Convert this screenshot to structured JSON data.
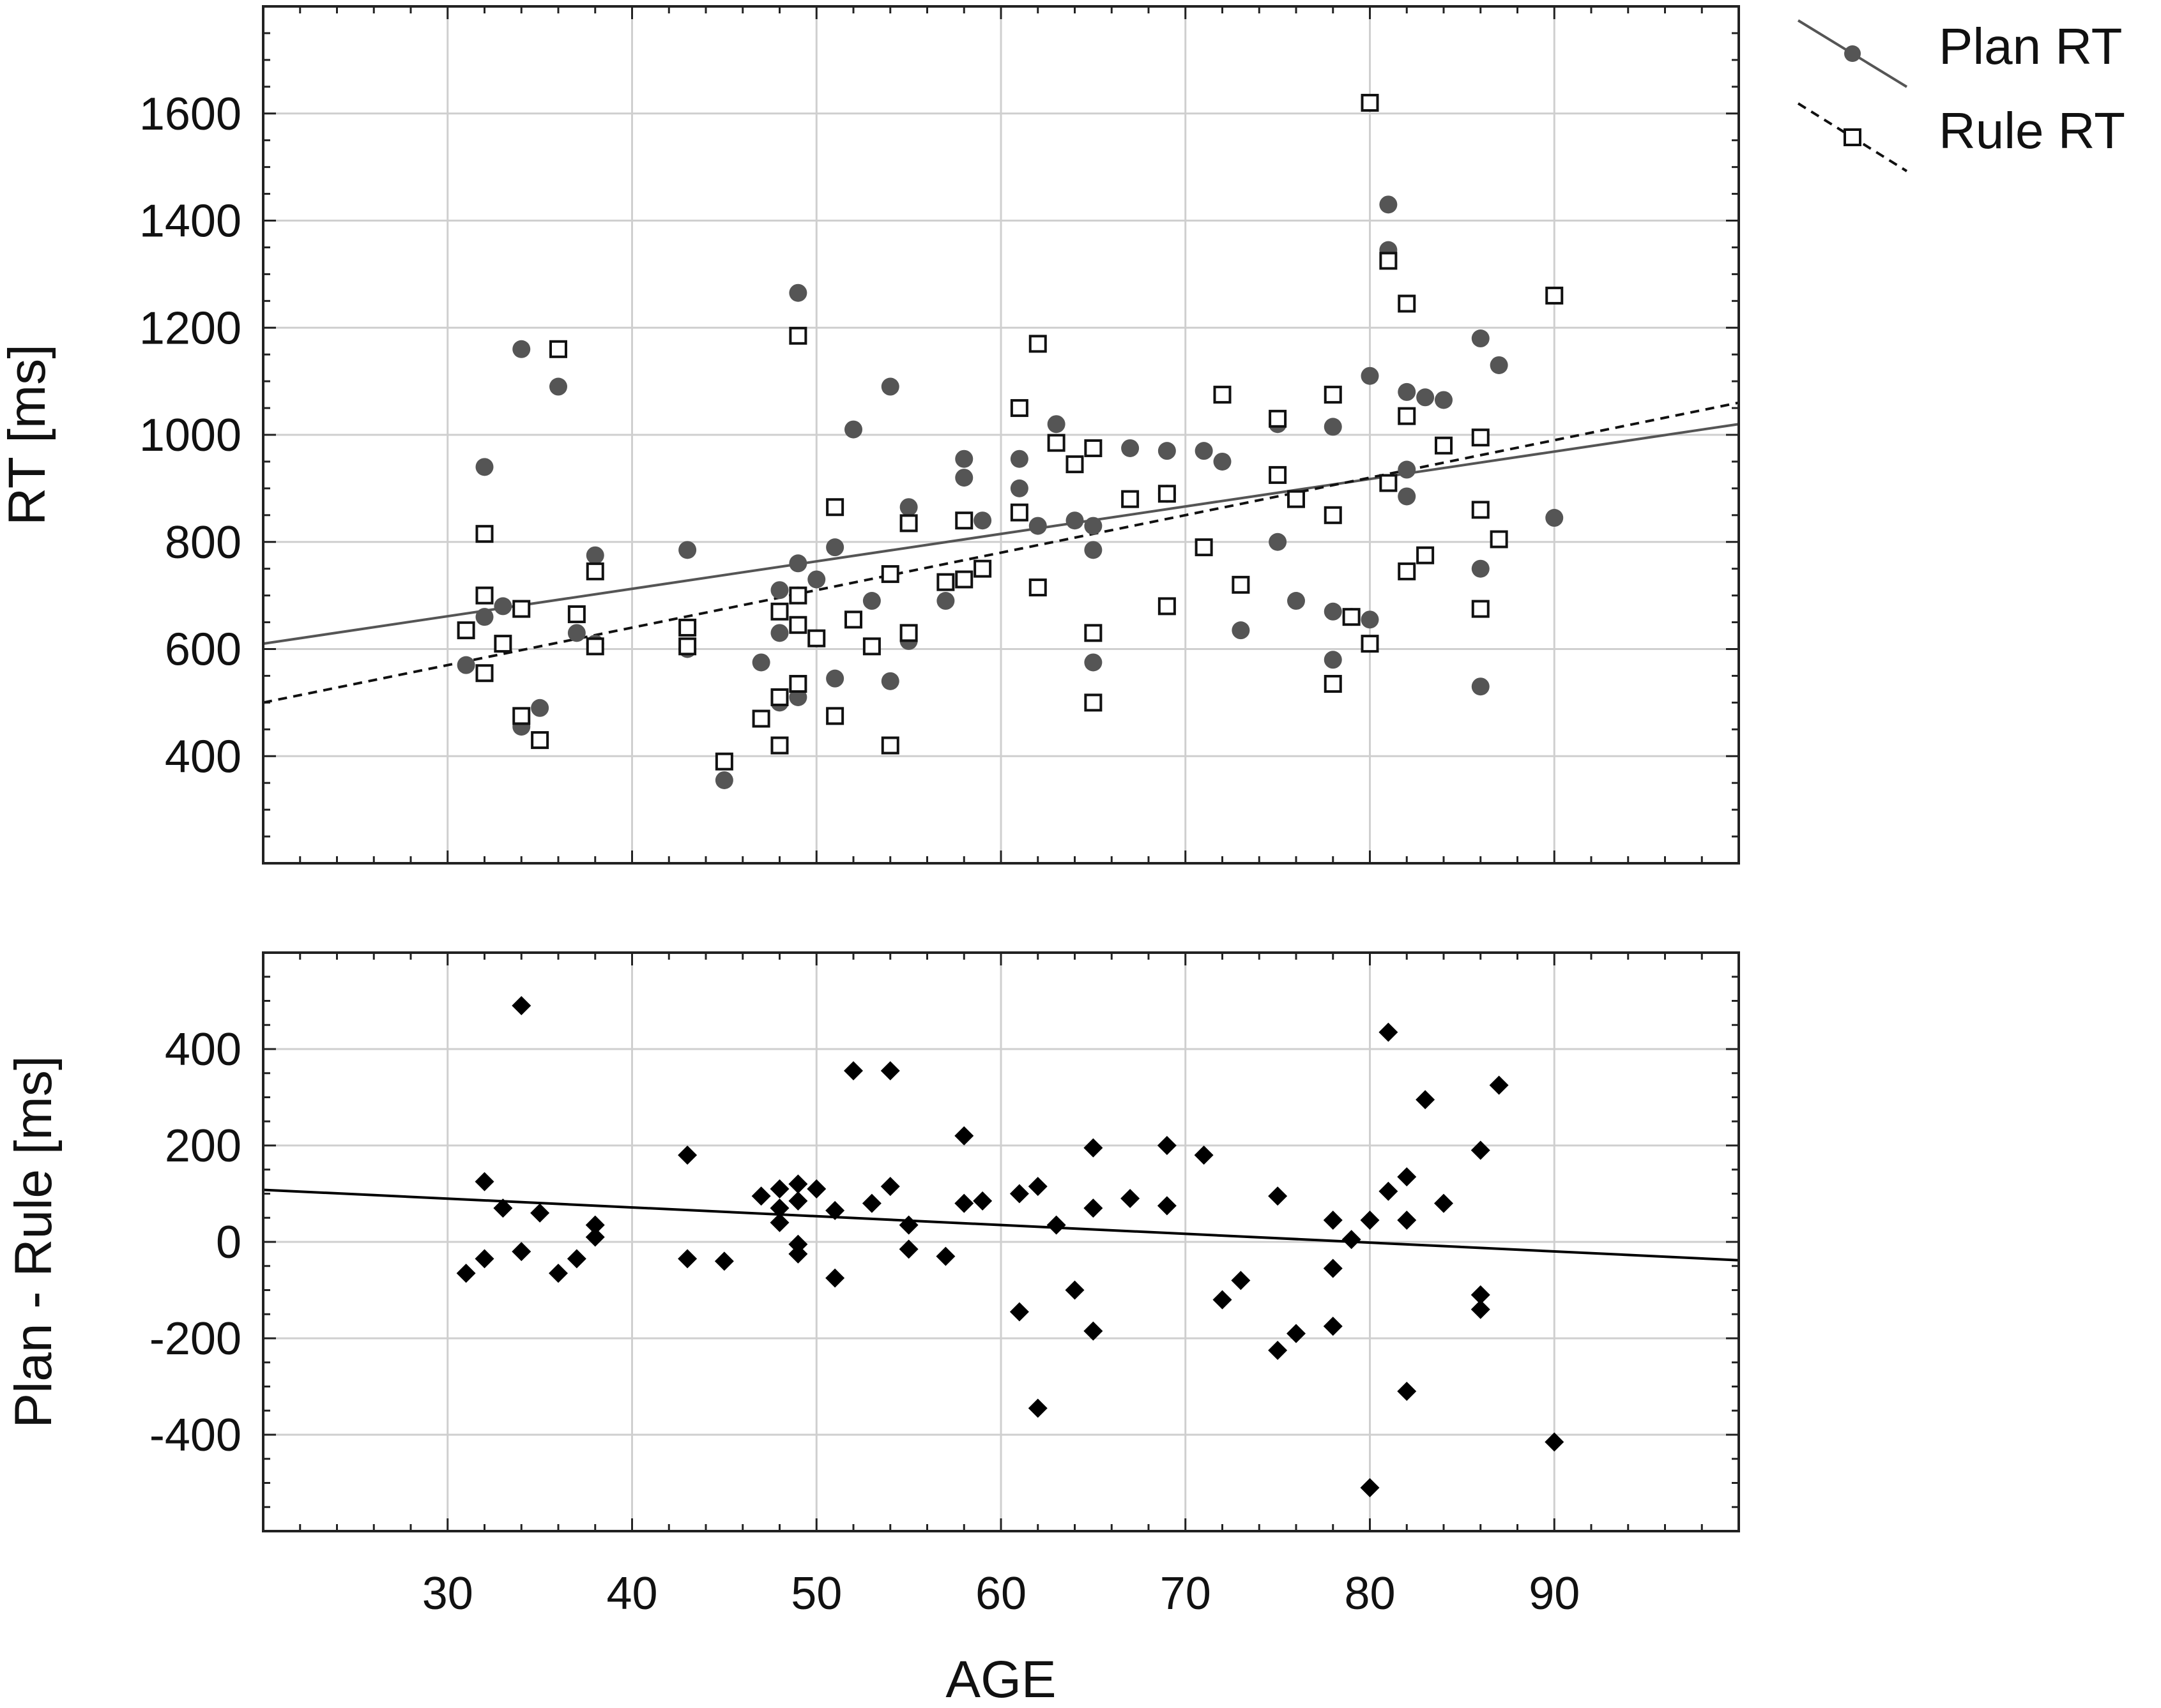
{
  "chart_data": [
    {
      "type": "scatter",
      "title": "",
      "xlabel": "",
      "ylabel": "RT [ms]",
      "xlim": [
        20,
        100
      ],
      "ylim": [
        200,
        1800
      ],
      "xticks": [
        30,
        40,
        50,
        60,
        70,
        80,
        90
      ],
      "yticks": [
        400,
        600,
        800,
        1000,
        1200,
        1400,
        1600
      ],
      "grid": true,
      "legend_position": "top-right",
      "series": [
        {
          "name": "Plan RT",
          "marker": "filled-circle",
          "color": "#555555",
          "points": [
            [
              31,
              570
            ],
            [
              32,
              940
            ],
            [
              32,
              660
            ],
            [
              33,
              680
            ],
            [
              34,
              1160
            ],
            [
              34,
              455
            ],
            [
              35,
              490
            ],
            [
              36,
              1090
            ],
            [
              37,
              630
            ],
            [
              38,
              775
            ],
            [
              38,
              610
            ],
            [
              43,
              785
            ],
            [
              43,
              600
            ],
            [
              45,
              355
            ],
            [
              47,
              575
            ],
            [
              48,
              710
            ],
            [
              48,
              630
            ],
            [
              48,
              500
            ],
            [
              49,
              1265
            ],
            [
              49,
              760
            ],
            [
              49,
              700
            ],
            [
              49,
              510
            ],
            [
              50,
              730
            ],
            [
              51,
              790
            ],
            [
              51,
              545
            ],
            [
              52,
              1010
            ],
            [
              53,
              690
            ],
            [
              54,
              1090
            ],
            [
              54,
              540
            ],
            [
              55,
              865
            ],
            [
              55,
              615
            ],
            [
              57,
              690
            ],
            [
              58,
              955
            ],
            [
              58,
              920
            ],
            [
              59,
              840
            ],
            [
              61,
              955
            ],
            [
              61,
              900
            ],
            [
              62,
              830
            ],
            [
              63,
              1020
            ],
            [
              64,
              840
            ],
            [
              65,
              830
            ],
            [
              65,
              785
            ],
            [
              65,
              575
            ],
            [
              67,
              975
            ],
            [
              69,
              970
            ],
            [
              69,
              890
            ],
            [
              71,
              970
            ],
            [
              72,
              950
            ],
            [
              73,
              635
            ],
            [
              75,
              1020
            ],
            [
              75,
              800
            ],
            [
              76,
              690
            ],
            [
              78,
              1015
            ],
            [
              78,
              670
            ],
            [
              78,
              580
            ],
            [
              79,
              660
            ],
            [
              80,
              1110
            ],
            [
              80,
              655
            ],
            [
              81,
              1430
            ],
            [
              81,
              1345
            ],
            [
              82,
              1080
            ],
            [
              82,
              935
            ],
            [
              82,
              885
            ],
            [
              83,
              1070
            ],
            [
              84,
              1065
            ],
            [
              86,
              1180
            ],
            [
              86,
              750
            ],
            [
              86,
              530
            ],
            [
              87,
              1130
            ],
            [
              90,
              845
            ]
          ],
          "trend": {
            "x": [
              20,
              100
            ],
            "y": [
              610,
              1020
            ]
          }
        },
        {
          "name": "Rule RT",
          "marker": "open-square",
          "color": "#111111",
          "points": [
            [
              31,
              635
            ],
            [
              32,
              815
            ],
            [
              32,
              700
            ],
            [
              32,
              555
            ],
            [
              33,
              610
            ],
            [
              34,
              675
            ],
            [
              34,
              475
            ],
            [
              35,
              430
            ],
            [
              36,
              1160
            ],
            [
              37,
              665
            ],
            [
              38,
              745
            ],
            [
              38,
              605
            ],
            [
              43,
              640
            ],
            [
              43,
              605
            ],
            [
              45,
              390
            ],
            [
              47,
              470
            ],
            [
              48,
              670
            ],
            [
              48,
              510
            ],
            [
              48,
              420
            ],
            [
              49,
              1185
            ],
            [
              49,
              700
            ],
            [
              49,
              645
            ],
            [
              49,
              535
            ],
            [
              50,
              620
            ],
            [
              51,
              865
            ],
            [
              51,
              475
            ],
            [
              52,
              655
            ],
            [
              53,
              605
            ],
            [
              54,
              740
            ],
            [
              54,
              420
            ],
            [
              55,
              835
            ],
            [
              55,
              630
            ],
            [
              57,
              725
            ],
            [
              58,
              840
            ],
            [
              58,
              730
            ],
            [
              59,
              750
            ],
            [
              61,
              1050
            ],
            [
              61,
              855
            ],
            [
              62,
              1170
            ],
            [
              62,
              715
            ],
            [
              63,
              985
            ],
            [
              64,
              945
            ],
            [
              65,
              975
            ],
            [
              65,
              630
            ],
            [
              65,
              500
            ],
            [
              67,
              880
            ],
            [
              69,
              890
            ],
            [
              69,
              680
            ],
            [
              71,
              790
            ],
            [
              72,
              1075
            ],
            [
              73,
              720
            ],
            [
              75,
              1030
            ],
            [
              75,
              925
            ],
            [
              76,
              880
            ],
            [
              78,
              1075
            ],
            [
              78,
              850
            ],
            [
              78,
              535
            ],
            [
              79,
              660
            ],
            [
              80,
              1620
            ],
            [
              80,
              610
            ],
            [
              81,
              1325
            ],
            [
              81,
              910
            ],
            [
              82,
              1245
            ],
            [
              82,
              1035
            ],
            [
              82,
              745
            ],
            [
              83,
              775
            ],
            [
              84,
              980
            ],
            [
              86,
              995
            ],
            [
              86,
              860
            ],
            [
              86,
              675
            ],
            [
              87,
              805
            ],
            [
              90,
              1260
            ]
          ],
          "trend": {
            "x": [
              20,
              100
            ],
            "y": [
              500,
              1060
            ]
          }
        }
      ]
    },
    {
      "type": "scatter",
      "title": "",
      "xlabel": "AGE",
      "ylabel": "Plan - Rule [ms]",
      "xlim": [
        20,
        100
      ],
      "ylim": [
        -600,
        600
      ],
      "xticks": [
        30,
        40,
        50,
        60,
        70,
        80,
        90
      ],
      "yticks": [
        -400,
        -200,
        0,
        200,
        400
      ],
      "grid": true,
      "series": [
        {
          "marker": "filled-diamond",
          "color": "#000000",
          "points": [
            [
              31,
              -65
            ],
            [
              32,
              125
            ],
            [
              32,
              -35
            ],
            [
              33,
              70
            ],
            [
              34,
              490
            ],
            [
              34,
              -20
            ],
            [
              35,
              60
            ],
            [
              36,
              -65
            ],
            [
              37,
              -35
            ],
            [
              38,
              35
            ],
            [
              38,
              10
            ],
            [
              43,
              180
            ],
            [
              43,
              -35
            ],
            [
              45,
              -40
            ],
            [
              47,
              95
            ],
            [
              48,
              110
            ],
            [
              48,
              70
            ],
            [
              48,
              40
            ],
            [
              49,
              120
            ],
            [
              49,
              85
            ],
            [
              49,
              -5
            ],
            [
              49,
              -25
            ],
            [
              50,
              110
            ],
            [
              51,
              65
            ],
            [
              51,
              -75
            ],
            [
              52,
              355
            ],
            [
              53,
              80
            ],
            [
              54,
              355
            ],
            [
              54,
              115
            ],
            [
              55,
              35
            ],
            [
              55,
              -15
            ],
            [
              57,
              -30
            ],
            [
              58,
              220
            ],
            [
              58,
              80
            ],
            [
              59,
              85
            ],
            [
              61,
              100
            ],
            [
              61,
              -145
            ],
            [
              62,
              115
            ],
            [
              62,
              -345
            ],
            [
              63,
              35
            ],
            [
              64,
              -100
            ],
            [
              65,
              195
            ],
            [
              65,
              70
            ],
            [
              65,
              -185
            ],
            [
              67,
              90
            ],
            [
              69,
              200
            ],
            [
              69,
              75
            ],
            [
              71,
              180
            ],
            [
              72,
              -120
            ],
            [
              73,
              -80
            ],
            [
              75,
              95
            ],
            [
              75,
              -225
            ],
            [
              76,
              -190
            ],
            [
              78,
              45
            ],
            [
              78,
              -55
            ],
            [
              78,
              -175
            ],
            [
              79,
              5
            ],
            [
              80,
              45
            ],
            [
              80,
              -510
            ],
            [
              81,
              435
            ],
            [
              81,
              105
            ],
            [
              82,
              135
            ],
            [
              82,
              45
            ],
            [
              82,
              -310
            ],
            [
              83,
              295
            ],
            [
              84,
              80
            ],
            [
              86,
              190
            ],
            [
              86,
              -110
            ],
            [
              86,
              -140
            ],
            [
              87,
              325
            ],
            [
              90,
              -415
            ]
          ],
          "trend": {
            "x": [
              20,
              100
            ],
            "y": [
              108,
              -38
            ]
          }
        }
      ]
    }
  ]
}
